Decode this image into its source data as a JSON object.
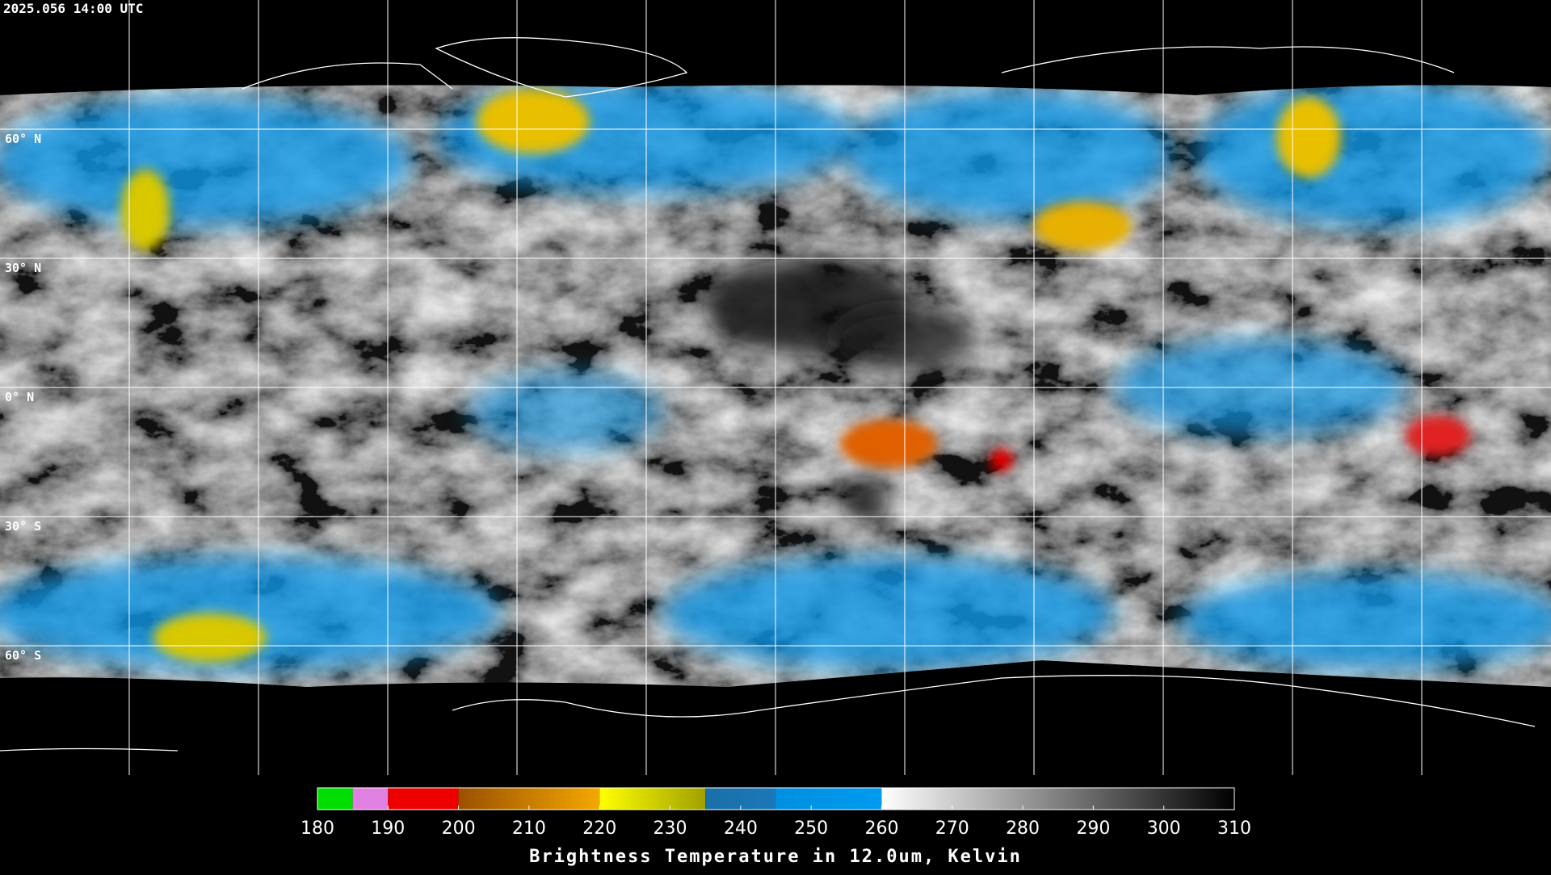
{
  "header": {
    "title": "2025.056 14:00 UTC"
  },
  "map": {
    "lat_lines": [
      {
        "value": 60,
        "label": "60° N"
      },
      {
        "value": 30,
        "label": "30° N"
      },
      {
        "value": 0,
        "label": "0° N"
      },
      {
        "value": -30,
        "label": "30° S"
      },
      {
        "value": -60,
        "label": "60° S"
      }
    ],
    "lon_lines": [
      -150,
      -120,
      -90,
      -60,
      -30,
      0,
      30,
      60,
      90,
      120,
      150
    ]
  },
  "colorbar": {
    "lim": [
      180,
      310
    ],
    "ticks": [
      180,
      190,
      200,
      210,
      220,
      230,
      240,
      250,
      260,
      270,
      280,
      290,
      300,
      310
    ],
    "segments": [
      {
        "from": 180,
        "to": 185,
        "color_start": "#00dd00",
        "color_end": "#00dd00"
      },
      {
        "from": 185,
        "to": 190,
        "color_start": "#e080e0",
        "color_end": "#e080e0"
      },
      {
        "from": 190,
        "to": 200,
        "color_start": "#ee0000",
        "color_end": "#ee0000"
      },
      {
        "from": 200,
        "to": 220,
        "color_start": "#9a5000",
        "color_end": "#f4a800"
      },
      {
        "from": 220,
        "to": 235,
        "color_start": "#ffff00",
        "color_end": "#a0a000"
      },
      {
        "from": 235,
        "to": 245,
        "color_start": "#1a6fa8",
        "color_end": "#1a78b8"
      },
      {
        "from": 245,
        "to": 260,
        "color_start": "#0090e0",
        "color_end": "#009aee"
      },
      {
        "from": 260,
        "to": 310,
        "color_start": "#ffffff",
        "color_end": "#000000"
      }
    ],
    "label": "Brightness Temperature in 12.0um, Kelvin"
  }
}
